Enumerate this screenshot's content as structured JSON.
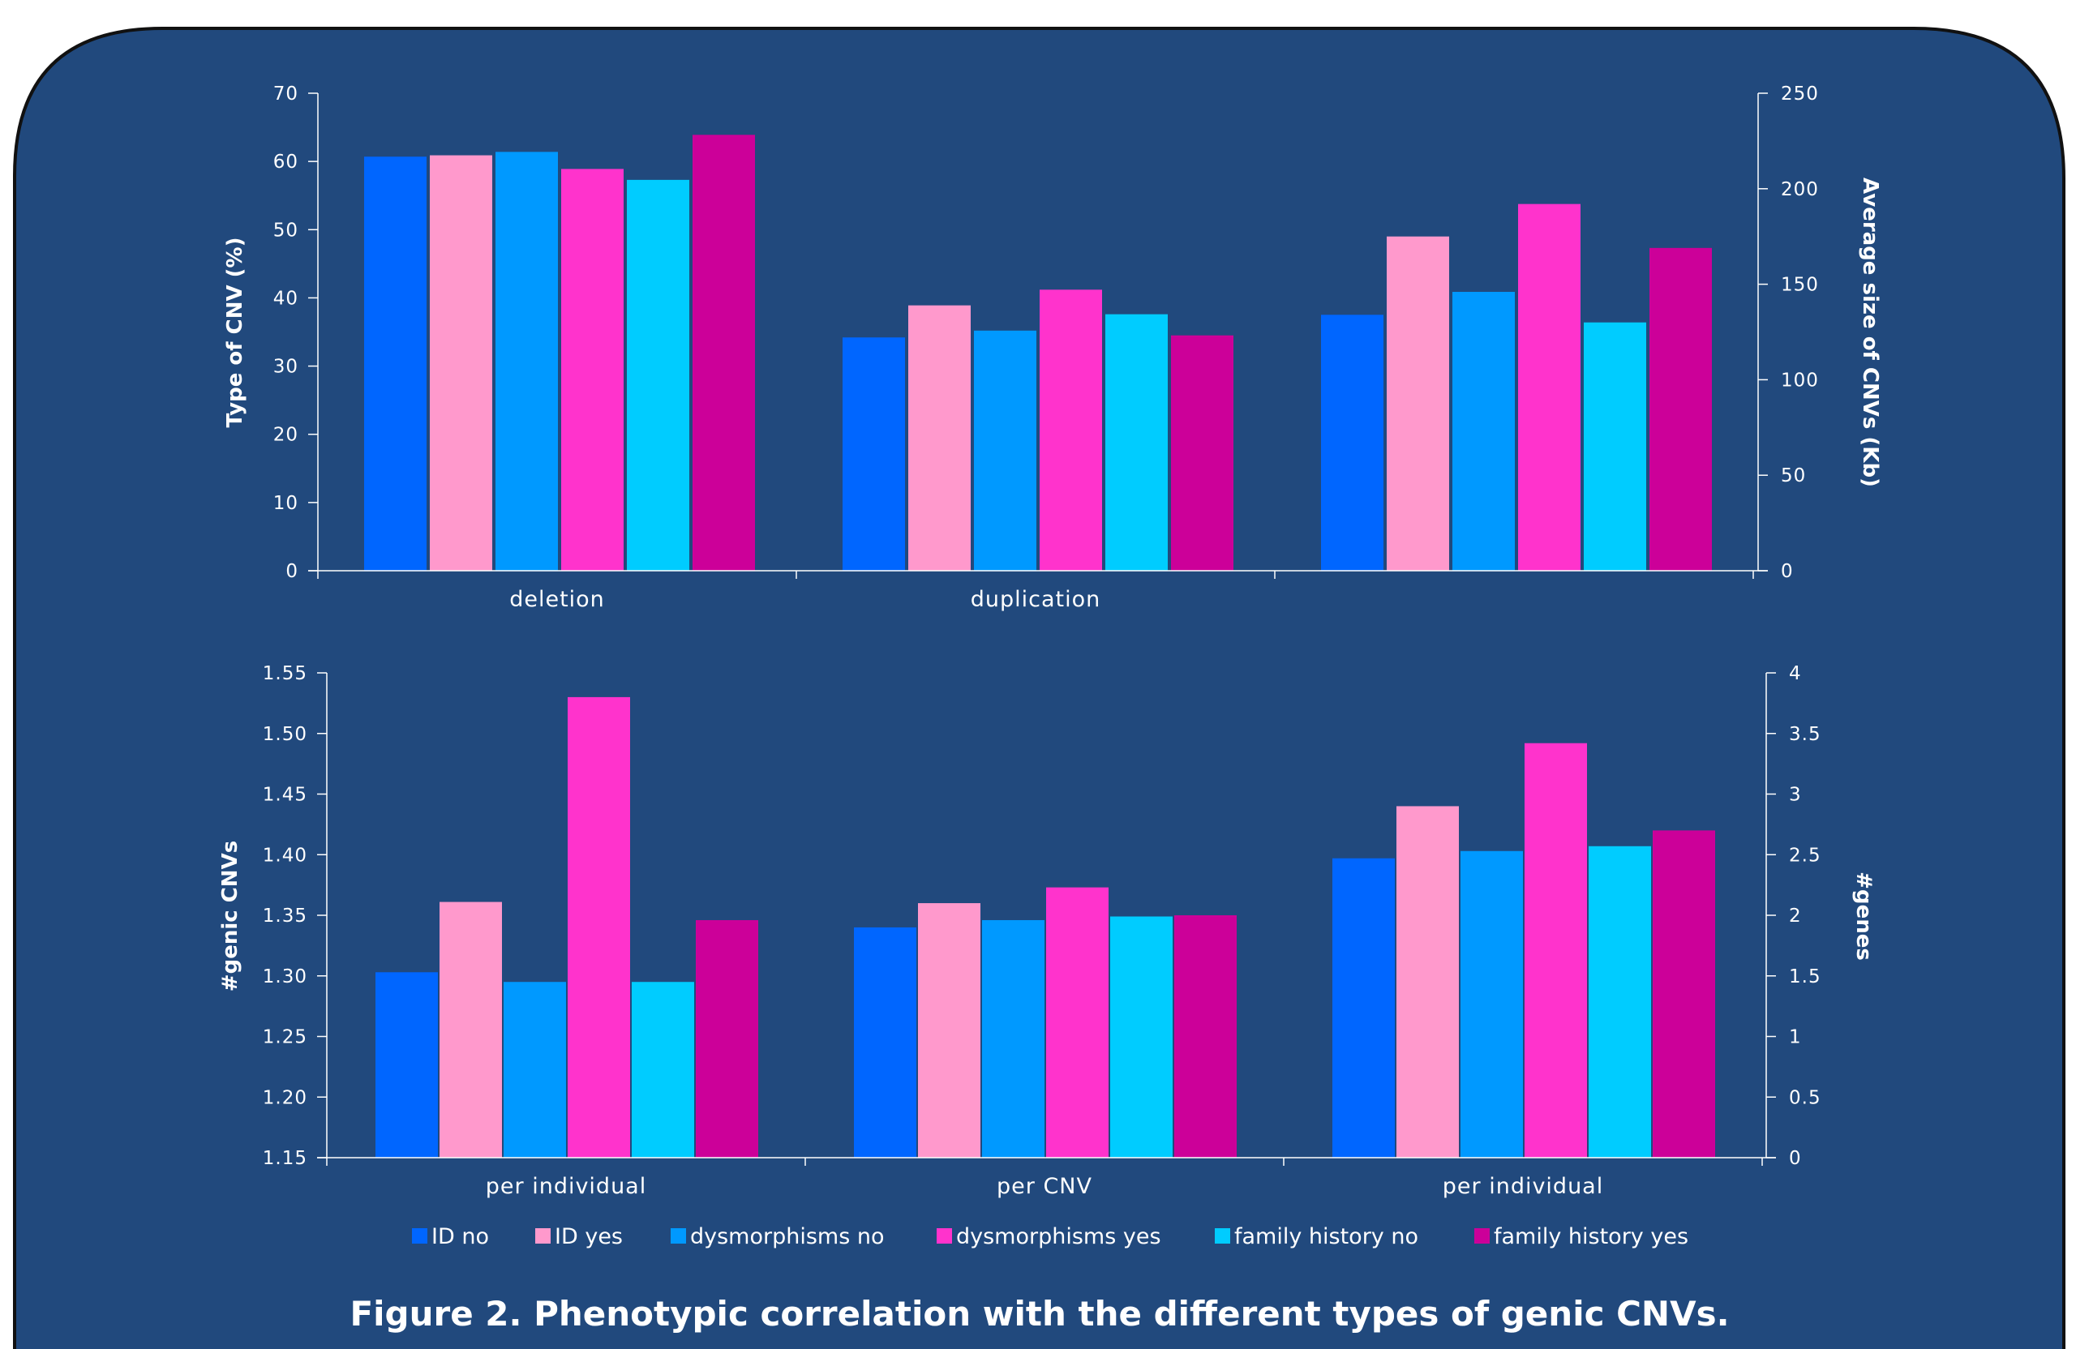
{
  "colors": {
    "panel": "#21497D",
    "border": "#111111",
    "axis": "#ffffff",
    "series": [
      "#0066FF",
      "#FF99CC",
      "#0099FF",
      "#FF33CC",
      "#00CCFF",
      "#CC0099"
    ]
  },
  "legend": [
    "ID no",
    "ID yes",
    "dysmorphisms no",
    "dysmorphisms yes",
    "family history no",
    "family history yes"
  ],
  "caption": "Figure 2. Phenotypic correlation with the different types of genic CNVs.",
  "chart_data": [
    {
      "type": "bar",
      "categories": [
        "deletion",
        "duplication",
        ""
      ],
      "series": [
        {
          "name": "ID no",
          "values": [
            60.7,
            34.2,
            134
          ]
        },
        {
          "name": "ID yes",
          "values": [
            60.9,
            38.9,
            175
          ]
        },
        {
          "name": "dysmorphisms no",
          "values": [
            61.4,
            35.2,
            146
          ]
        },
        {
          "name": "dysmorphisms yes",
          "values": [
            58.9,
            41.2,
            192
          ]
        },
        {
          "name": "family history no",
          "values": [
            57.3,
            37.6,
            130
          ]
        },
        {
          "name": "family history yes",
          "values": [
            63.9,
            34.5,
            169
          ]
        }
      ],
      "series_axis": [
        "left",
        "left",
        "right"
      ],
      "ylabel": "Type of CNV (%)",
      "ylim": [
        0,
        70
      ],
      "yticks": [
        "0",
        "10",
        "20",
        "30",
        "40",
        "50",
        "60",
        "70"
      ],
      "y2label": "Average size of CNVs (Kb)",
      "y2lim": [
        0,
        250
      ],
      "y2ticks": [
        "0",
        "50",
        "100",
        "150",
        "200",
        "250"
      ],
      "grid": false
    },
    {
      "type": "bar",
      "categories": [
        "per individual",
        "per CNV",
        "per individual"
      ],
      "series": [
        {
          "name": "ID no",
          "values": [
            1.303,
            1.34,
            2.47
          ]
        },
        {
          "name": "ID yes",
          "values": [
            1.361,
            1.36,
            2.9
          ]
        },
        {
          "name": "dysmorphisms no",
          "values": [
            1.295,
            1.346,
            2.53
          ]
        },
        {
          "name": "dysmorphisms yes",
          "values": [
            1.53,
            1.373,
            3.42
          ]
        },
        {
          "name": "family history no",
          "values": [
            1.295,
            1.349,
            2.57
          ]
        },
        {
          "name": "family history yes",
          "values": [
            1.346,
            1.35,
            2.7
          ]
        }
      ],
      "series_axis": [
        "left",
        "left",
        "right"
      ],
      "ylabel": "#genic CNVs",
      "ylim": [
        1.15,
        1.55
      ],
      "yticks": [
        "1.15",
        "1.20",
        "1.25",
        "1.30",
        "1.35",
        "1.40",
        "1.45",
        "1.50",
        "1.55"
      ],
      "y2label": "#genes",
      "y2lim": [
        0,
        4
      ],
      "y2ticks": [
        "0",
        "0.5",
        "1",
        "1.5",
        "2",
        "2.5",
        "3",
        "3.5",
        "4"
      ],
      "grid": false
    }
  ]
}
